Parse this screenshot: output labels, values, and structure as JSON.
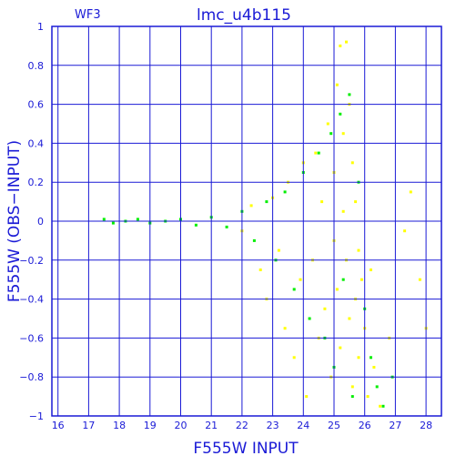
{
  "chart_data": {
    "type": "scatter",
    "title": "lmc_u4b115",
    "panel_label": "WF3",
    "xlabel": "F555W INPUT",
    "ylabel": "F555W (OBS−INPUT)",
    "xlim": [
      15.8,
      28.5
    ],
    "ylim": [
      -1,
      1
    ],
    "x_ticks": [
      16,
      17,
      18,
      19,
      20,
      21,
      22,
      23,
      24,
      25,
      26,
      27,
      28
    ],
    "y_ticks": [
      -1,
      -0.8,
      -0.6,
      -0.4,
      -0.2,
      0,
      0.2,
      0.4,
      0.6,
      0.8,
      1
    ],
    "y_tick_labels": [
      "−1",
      "−0.8",
      "−0.6",
      "−0.4",
      "−0.2",
      "0",
      "0.2",
      "0.4",
      "0.6",
      "0.8",
      "1"
    ],
    "grid": true,
    "colors": {
      "axis": "#1a1ad6",
      "series_yellow": "#ffff00",
      "series_green": "#00ee00"
    },
    "series": [
      {
        "color": "#ffff00",
        "points": [
          [
            22.0,
            -0.05
          ],
          [
            22.3,
            0.08
          ],
          [
            22.6,
            -0.25
          ],
          [
            22.8,
            -0.4
          ],
          [
            23.0,
            0.12
          ],
          [
            23.2,
            -0.15
          ],
          [
            23.4,
            -0.55
          ],
          [
            23.5,
            0.2
          ],
          [
            23.7,
            -0.7
          ],
          [
            23.9,
            -0.3
          ],
          [
            24.0,
            0.3
          ],
          [
            24.1,
            -0.9
          ],
          [
            24.3,
            -0.2
          ],
          [
            24.4,
            0.35
          ],
          [
            24.5,
            -0.6
          ],
          [
            24.6,
            0.1
          ],
          [
            24.7,
            -0.45
          ],
          [
            24.8,
            0.5
          ],
          [
            24.9,
            -0.8
          ],
          [
            25.0,
            0.25
          ],
          [
            25.0,
            -0.1
          ],
          [
            25.1,
            0.7
          ],
          [
            25.1,
            -0.35
          ],
          [
            25.2,
            0.9
          ],
          [
            25.2,
            -0.65
          ],
          [
            25.3,
            0.45
          ],
          [
            25.3,
            0.05
          ],
          [
            25.4,
            0.92
          ],
          [
            25.4,
            -0.2
          ],
          [
            25.5,
            0.6
          ],
          [
            25.5,
            -0.5
          ],
          [
            25.6,
            0.3
          ],
          [
            25.6,
            -0.85
          ],
          [
            25.7,
            0.1
          ],
          [
            25.7,
            -0.4
          ],
          [
            25.8,
            -0.15
          ],
          [
            25.8,
            -0.7
          ],
          [
            25.9,
            -0.3
          ],
          [
            26.0,
            -0.55
          ],
          [
            26.1,
            -0.9
          ],
          [
            26.2,
            -0.25
          ],
          [
            26.3,
            -0.75
          ],
          [
            26.5,
            -0.95
          ],
          [
            26.8,
            -0.6
          ],
          [
            27.3,
            -0.05
          ],
          [
            27.5,
            0.15
          ],
          [
            27.8,
            -0.3
          ],
          [
            28.0,
            -0.55
          ]
        ]
      },
      {
        "color": "#00ee00",
        "points": [
          [
            17.5,
            0.01
          ],
          [
            17.8,
            -0.01
          ],
          [
            18.2,
            0.0
          ],
          [
            18.6,
            0.01
          ],
          [
            19.0,
            -0.01
          ],
          [
            19.5,
            0.0
          ],
          [
            20.0,
            0.01
          ],
          [
            20.5,
            -0.02
          ],
          [
            21.0,
            0.02
          ],
          [
            21.5,
            -0.03
          ],
          [
            22.0,
            0.05
          ],
          [
            22.4,
            -0.1
          ],
          [
            22.8,
            0.1
          ],
          [
            23.1,
            -0.2
          ],
          [
            23.4,
            0.15
          ],
          [
            23.7,
            -0.35
          ],
          [
            24.0,
            0.25
          ],
          [
            24.2,
            -0.5
          ],
          [
            24.5,
            0.35
          ],
          [
            24.7,
            -0.6
          ],
          [
            24.9,
            0.45
          ],
          [
            25.0,
            -0.75
          ],
          [
            25.2,
            0.55
          ],
          [
            25.3,
            -0.3
          ],
          [
            25.5,
            0.65
          ],
          [
            25.6,
            -0.9
          ],
          [
            25.8,
            0.2
          ],
          [
            26.0,
            -0.45
          ],
          [
            26.2,
            -0.7
          ],
          [
            26.4,
            -0.85
          ],
          [
            26.6,
            -0.95
          ],
          [
            26.9,
            -0.8
          ]
        ]
      }
    ]
  }
}
